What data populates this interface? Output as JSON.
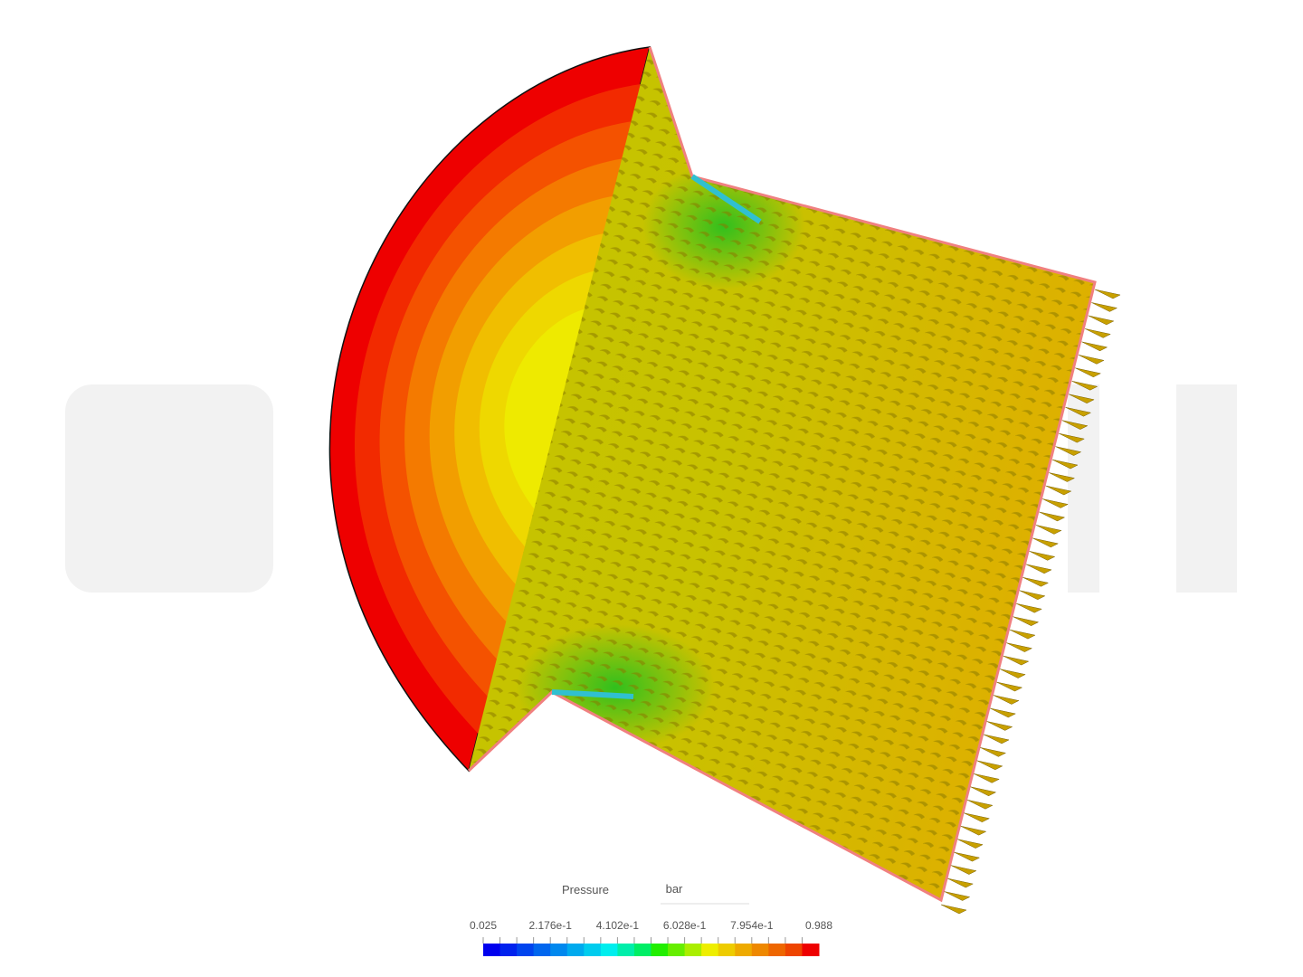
{
  "legend": {
    "title": "Pressure",
    "unit": "bar",
    "ticks": [
      "0.025",
      "2.176e-1",
      "4.102e-1",
      "6.028e-1",
      "7.954e-1",
      "0.988"
    ]
  }
}
